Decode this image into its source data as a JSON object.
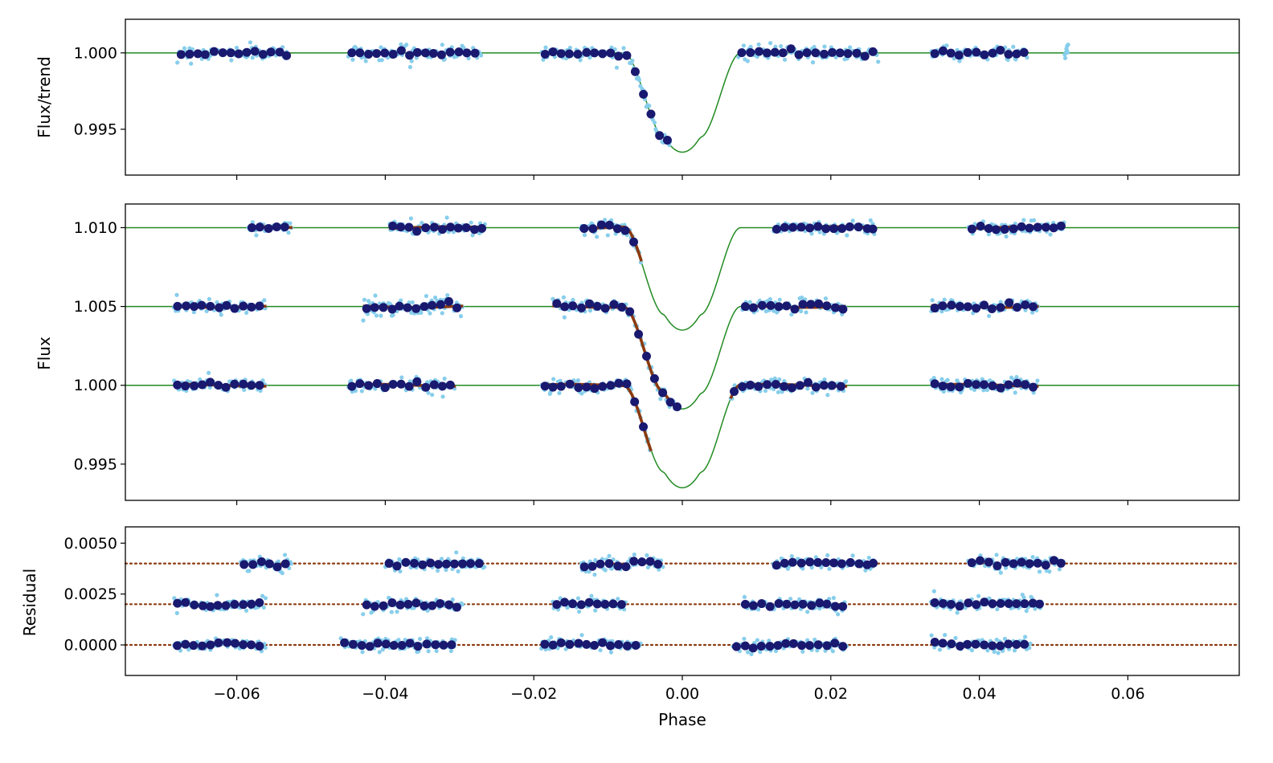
{
  "colors": {
    "raw": "#87ceeb",
    "binned": "#191970",
    "model": "#228b22",
    "trend": "#8b3a0f",
    "residual_ref": "#8b3a0f"
  },
  "chart_data": [
    {
      "type": "scatter",
      "panel": "top",
      "ylabel": "Flux/trend",
      "xlabel": "",
      "xlim": [
        -0.075,
        0.075
      ],
      "ylim": [
        0.992,
        1.0022
      ],
      "yticks": [
        1.0,
        0.995
      ],
      "ytick_labels": [
        "1.000",
        "0.995"
      ],
      "model": {
        "depth": 0.0065,
        "t14": 0.0157,
        "t23": 0.0048
      },
      "segments": [
        {
          "x0": -0.068,
          "x1": -0.053,
          "offset": 0.0
        },
        {
          "x0": -0.045,
          "x1": -0.027,
          "offset": 0.0
        },
        {
          "x0": -0.019,
          "x1": -0.0015,
          "offset": 0.0
        },
        {
          "x0": 0.0075,
          "x1": 0.0265,
          "offset": 0.0
        },
        {
          "x0": 0.0335,
          "x1": 0.0465,
          "offset": 0.0
        },
        {
          "x0": 0.0515,
          "x1": 0.052,
          "offset": 0.0
        }
      ],
      "grid": false
    },
    {
      "type": "scatter",
      "panel": "middle",
      "ylabel": "Flux",
      "xlabel": "",
      "xlim": [
        -0.075,
        0.075
      ],
      "ylim": [
        0.9927,
        1.0115
      ],
      "yticks": [
        1.01,
        1.005,
        1.0,
        0.995
      ],
      "ytick_labels": [
        "1.010",
        "1.005",
        "1.000",
        "0.995"
      ],
      "model": {
        "depth": 0.0065,
        "t14": 0.0157,
        "t23": 0.0048
      },
      "baselines": [
        1.01,
        1.005,
        1.0
      ],
      "segments": [
        {
          "x0": -0.0585,
          "x1": -0.0525,
          "offset": 0.01
        },
        {
          "x0": -0.0395,
          "x1": -0.0265,
          "offset": 0.01
        },
        {
          "x0": -0.0137,
          "x1": -0.0055,
          "offset": 0.01
        },
        {
          "x0": 0.0122,
          "x1": 0.026,
          "offset": 0.01
        },
        {
          "x0": 0.0385,
          "x1": 0.0515,
          "offset": 0.01
        },
        {
          "x0": -0.0685,
          "x1": -0.056,
          "offset": 0.005
        },
        {
          "x0": -0.043,
          "x1": -0.0295,
          "offset": 0.005
        },
        {
          "x0": -0.0175,
          "x1": -0.0003,
          "offset": 0.005
        },
        {
          "x0": 0.008,
          "x1": 0.022,
          "offset": 0.005
        },
        {
          "x0": 0.0335,
          "x1": 0.048,
          "offset": 0.005
        },
        {
          "x0": -0.0685,
          "x1": -0.056,
          "offset": 0.0
        },
        {
          "x0": -0.045,
          "x1": -0.0305,
          "offset": 0.0
        },
        {
          "x0": -0.019,
          "x1": -0.0042,
          "offset": 0.0
        },
        {
          "x0": 0.0065,
          "x1": 0.0222,
          "offset": 0.0
        },
        {
          "x0": 0.0335,
          "x1": 0.048,
          "offset": 0.0
        }
      ],
      "grid": false
    },
    {
      "type": "scatter",
      "panel": "bottom",
      "ylabel": "Residual",
      "xlabel": "Phase",
      "xlim": [
        -0.075,
        0.075
      ],
      "ylim": [
        -0.0015,
        0.0058
      ],
      "yticks": [
        0.005,
        0.0025,
        0.0
      ],
      "ytick_labels": [
        "0.0050",
        "0.0025",
        "0.0000"
      ],
      "xticks": [
        -0.06,
        -0.04,
        -0.02,
        0.0,
        0.02,
        0.04,
        0.06
      ],
      "xtick_labels": [
        "−0.06",
        "−0.04",
        "−0.02",
        "0.00",
        "0.02",
        "0.04",
        "0.06"
      ],
      "reference_lines": [
        0.004,
        0.002,
        0.0
      ],
      "segments": [
        {
          "x0": -0.0595,
          "x1": -0.0525,
          "offset": 0.004
        },
        {
          "x0": -0.04,
          "x1": -0.0265,
          "offset": 0.004
        },
        {
          "x0": -0.0137,
          "x1": -0.0025,
          "offset": 0.004
        },
        {
          "x0": 0.0122,
          "x1": 0.026,
          "offset": 0.004
        },
        {
          "x0": 0.0385,
          "x1": 0.0515,
          "offset": 0.004
        },
        {
          "x0": -0.0685,
          "x1": -0.056,
          "offset": 0.002
        },
        {
          "x0": -0.043,
          "x1": -0.0295,
          "offset": 0.002
        },
        {
          "x0": -0.0175,
          "x1": -0.0075,
          "offset": 0.002
        },
        {
          "x0": 0.008,
          "x1": 0.022,
          "offset": 0.002
        },
        {
          "x0": 0.0335,
          "x1": 0.0485,
          "offset": 0.002
        },
        {
          "x0": -0.0685,
          "x1": -0.056,
          "offset": 0.0
        },
        {
          "x0": -0.046,
          "x1": -0.0305,
          "offset": 0.0
        },
        {
          "x0": -0.019,
          "x1": -0.0055,
          "offset": 0.0
        },
        {
          "x0": 0.0068,
          "x1": 0.0222,
          "offset": 0.0
        },
        {
          "x0": 0.0335,
          "x1": 0.047,
          "offset": 0.0
        }
      ],
      "grid": false
    }
  ]
}
